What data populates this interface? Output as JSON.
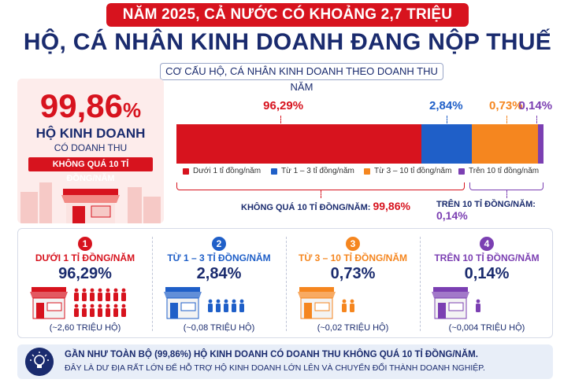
{
  "header": {
    "top_line": "NĂM 2025, CẢ NƯỚC CÓ KHOẢNG 2,7 TRIỆU",
    "main_title": "HỘ, CÁ NHÂN KINH DOANH ĐANG NỘP THUẾ",
    "subtitle": "CƠ CẤU HỘ, CÁ NHÂN KINH DOANH THEO DOANH THU NĂM"
  },
  "left_panel": {
    "big_value": "99,86",
    "big_unit": "%",
    "line1": "HỘ KINH DOANH",
    "line2": "CÓ DOANH THU",
    "badge": "KHÔNG QUÁ 10 TỈ ĐỒNG/NĂM"
  },
  "colors": {
    "red": "#d7131e",
    "blue": "#1f5fc8",
    "orange": "#f5861f",
    "purple": "#7b3fb2",
    "navy": "#1a2b6e"
  },
  "chart_data": {
    "type": "bar",
    "orientation": "stacked-horizontal",
    "categories": [
      "Dưới 1 tỉ đồng/năm",
      "Từ 1 – 3 tỉ đồng/năm",
      "Từ 3 – 10 tỉ đồng/năm",
      "Trên 10 tỉ đồng/năm"
    ],
    "values": [
      96.29,
      2.84,
      0.73,
      0.14
    ],
    "value_labels": [
      "96,29%",
      "2,84%",
      "0,73%",
      "0,14%"
    ],
    "colors": [
      "#d7131e",
      "#1f5fc8",
      "#f5861f",
      "#7b3fb2"
    ],
    "unit": "%",
    "legend_position": "bottom",
    "grid": false,
    "annotations": [
      {
        "label": "KHÔNG QUÁ 10 TỈ ĐỒNG/NĂM:",
        "value": "99,86%"
      },
      {
        "label": "TRÊN 10 TỈ ĐỒNG/NĂM:",
        "value": "0,14%"
      }
    ]
  },
  "cards": [
    {
      "num": "1",
      "title": "DƯỚI 1 TỈ ĐỒNG/NĂM",
      "pct": "96,29%",
      "count": "(~2,60 TRIỆU HỘ)",
      "people": 14
    },
    {
      "num": "2",
      "title": "TỪ 1 – 3 TỈ ĐỒNG/NĂM",
      "pct": "2,84%",
      "count": "(~0,08 TRIỆU HỘ)",
      "people": 5
    },
    {
      "num": "3",
      "title": "TỪ 3 – 10 TỈ ĐỒNG/NĂM",
      "pct": "0,73%",
      "count": "(~0,02 TRIỆU HỘ)",
      "people": 2
    },
    {
      "num": "4",
      "title": "TRÊN 10 TỈ ĐỒNG/NĂM",
      "pct": "0,14%",
      "count": "(~0,004 TRIỆU HỘ)",
      "people": 1
    }
  ],
  "footer": {
    "line1": "GẦN NHƯ TOÀN BỘ (99,86%) HỘ KINH DOANH CÓ DOANH THU KHÔNG QUÁ 10 TỈ ĐỒNG/NĂM.",
    "line2": "ĐÂY LÀ DƯ ĐỊA RẤT LỚN ĐỂ HỖ TRỢ HỘ KINH DOANH LỚN LÊN VÀ CHUYỂN ĐỔI THÀNH DOANH NGHIỆP.",
    "icon": "lightbulb-icon"
  }
}
